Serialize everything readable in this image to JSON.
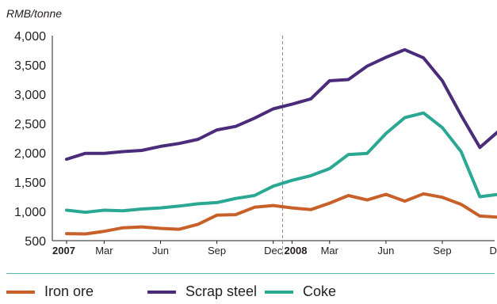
{
  "chart_data": {
    "type": "line",
    "title": "",
    "ylabel": "RMB/tonne",
    "xlabel": "",
    "ylim": [
      500,
      4000
    ],
    "yticks": [
      "500",
      "1,000",
      "1,500",
      "2,000",
      "2,500",
      "3,000",
      "3,500",
      "4,000"
    ],
    "ytick_values": [
      500,
      1000,
      1500,
      2000,
      2500,
      3000,
      3500,
      4000
    ],
    "x": [
      "2007-01",
      "2007-02",
      "2007-03",
      "2007-04",
      "2007-05",
      "2007-06",
      "2007-07",
      "2007-08",
      "2007-09",
      "2007-10",
      "2007-11",
      "2007-12",
      "2008-01",
      "2008-02",
      "2008-03",
      "2008-04",
      "2008-05",
      "2008-06",
      "2008-07",
      "2008-08",
      "2008-09",
      "2008-10",
      "2008-11",
      "2008-12"
    ],
    "xtick_labels": [
      {
        "label": "2007",
        "x": "2007-01",
        "major": true
      },
      {
        "label": "Mar",
        "x": "2007-03",
        "major": false
      },
      {
        "label": "Jun",
        "x": "2007-06",
        "major": false
      },
      {
        "label": "Sep",
        "x": "2007-09",
        "major": false
      },
      {
        "label": "Dec",
        "x": "2007-12",
        "major": false
      },
      {
        "label": "2008",
        "x": "2008-01",
        "major": true
      },
      {
        "label": "Mar",
        "x": "2008-03",
        "major": false
      },
      {
        "label": "Jun",
        "x": "2008-06",
        "major": false
      },
      {
        "label": "Sep",
        "x": "2008-09",
        "major": false
      },
      {
        "label": "Dec",
        "x": "2008-12",
        "major": false
      }
    ],
    "divider_at": "2008-01",
    "series": [
      {
        "name": "Iron ore",
        "color": "#c8602a",
        "values": [
          620,
          615,
          660,
          720,
          735,
          710,
          695,
          780,
          935,
          945,
          1070,
          1100,
          1060,
          1030,
          1140,
          1270,
          1195,
          1290,
          1175,
          1300,
          1240,
          1120,
          920,
          900
        ]
      },
      {
        "name": "Scrap steel",
        "color": "#4a2c7a",
        "values": [
          1890,
          1990,
          1990,
          2020,
          2040,
          2110,
          2160,
          2230,
          2390,
          2450,
          2590,
          2750,
          2830,
          2920,
          3230,
          3250,
          3480,
          3630,
          3760,
          3620,
          3230,
          2640,
          2090,
          2370
        ]
      },
      {
        "name": "Coke",
        "color": "#2aa893",
        "values": [
          1020,
          985,
          1020,
          1010,
          1040,
          1060,
          1090,
          1130,
          1150,
          1220,
          1270,
          1430,
          1530,
          1610,
          1730,
          1970,
          1990,
          2330,
          2600,
          2680,
          2430,
          2020,
          1250,
          1290
        ]
      }
    ],
    "grid": false,
    "legend_position": "bottom"
  }
}
